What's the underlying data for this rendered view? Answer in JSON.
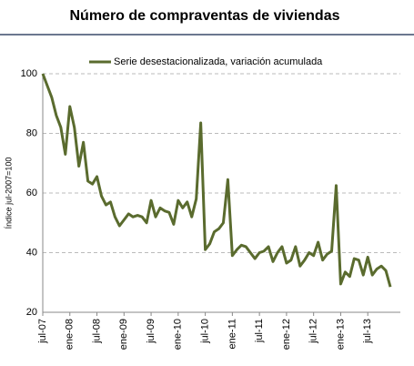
{
  "chart_data": {
    "type": "line",
    "title": "Número de compraventas de viviendas",
    "y_label": "Índice jul-2007=100",
    "categories": [
      "jul-07",
      null,
      null,
      null,
      null,
      null,
      "ene-08",
      null,
      null,
      null,
      null,
      null,
      "jul-08",
      null,
      null,
      null,
      null,
      null,
      "ene-09",
      null,
      null,
      null,
      null,
      null,
      "jul-09",
      null,
      null,
      null,
      null,
      null,
      "ene-10",
      null,
      null,
      null,
      null,
      null,
      "jul-10",
      null,
      null,
      null,
      null,
      null,
      "ene-11",
      null,
      null,
      null,
      null,
      null,
      "jul-11",
      null,
      null,
      null,
      null,
      null,
      "ene-12",
      null,
      null,
      null,
      null,
      null,
      "jul-12",
      null,
      null,
      null,
      null,
      null,
      "ene-13",
      null,
      null,
      null,
      null,
      null,
      "jul-13",
      null,
      null,
      null,
      null,
      null
    ],
    "series": [
      {
        "name": "Serie desestacionalizada, variación acumulada",
        "color": "#5a6b2e",
        "values": [
          100,
          96,
          92,
          86,
          82,
          73,
          89,
          82,
          69,
          77,
          64,
          63,
          65.5,
          59,
          56,
          57,
          52,
          49,
          51,
          53,
          52,
          52.5,
          52,
          50,
          57.5,
          52,
          55,
          54,
          53.5,
          49.5,
          57.5,
          55,
          57,
          52,
          58,
          83.5,
          41,
          43,
          47,
          48,
          50,
          64.5,
          39,
          41,
          42.5,
          42,
          40,
          38,
          40,
          40.5,
          42,
          37,
          40,
          42,
          36.5,
          37.5,
          42,
          35.5,
          37.5,
          40,
          39,
          43.5,
          37.5,
          39.5,
          40.5,
          62.5,
          29.5,
          33.5,
          32,
          38,
          37.5,
          32.5,
          38.5,
          32.5,
          34.5,
          35.5,
          34,
          28.5
        ]
      }
    ],
    "ylim": [
      20,
      100
    ],
    "yticks": [
      20,
      40,
      60,
      80,
      100
    ],
    "grid": true,
    "legend": "top"
  }
}
